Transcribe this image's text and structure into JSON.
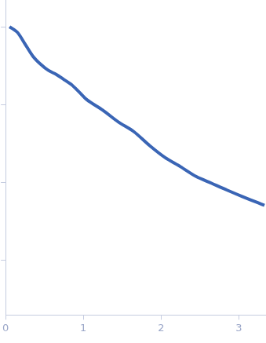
{
  "chart_data": {
    "type": "line",
    "color": "#3a65b5",
    "line_style": "solid",
    "marker": "none",
    "log": "y",
    "tick_labels": "x",
    "grid": false,
    "x": [
      0.05,
      0.15,
      0.25,
      0.35,
      0.45,
      0.55,
      0.65,
      0.75,
      0.85,
      0.95,
      1.05,
      1.25,
      1.45,
      1.65,
      1.85,
      2.05,
      2.25,
      2.45,
      2.65,
      2.85,
      3.05,
      3.25,
      3.33
    ],
    "values": [
      1.0,
      0.85,
      0.6,
      0.42,
      0.33,
      0.275,
      0.245,
      0.21,
      0.18,
      0.144,
      0.115,
      0.085,
      0.06,
      0.045,
      0.03,
      0.021,
      0.016,
      0.012,
      0.0098,
      0.008,
      0.0066,
      0.0055,
      0.0051
    ],
    "xlim": [
      0,
      3.35
    ],
    "xticks": [
      0,
      1,
      2,
      3
    ],
    "ylim": [
      0.0002,
      2.2
    ],
    "yticks": [
      0.001,
      0.01,
      0.1,
      1
    ]
  }
}
